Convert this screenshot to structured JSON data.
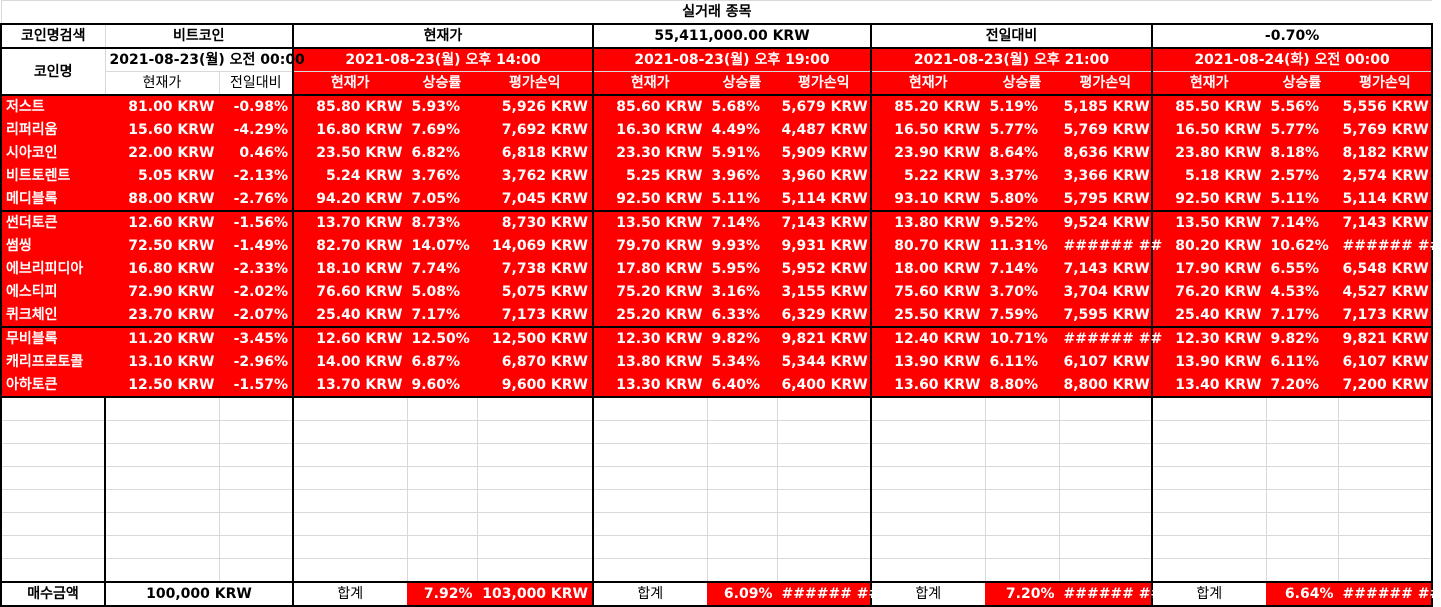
{
  "sheet": {
    "title": "실거래 종목",
    "search_label": "코인명검색",
    "search_value": "비트코인",
    "price_label": "현재가",
    "price_value": "55,411,000.00 KRW",
    "change_label": "전일대비",
    "change_value": "-0.70%",
    "coin_name_label": "코인명",
    "base_date": "2021-08-23(월) 오전 00:00",
    "base_cols": [
      "현재가",
      "전일대비"
    ],
    "sub_cols": [
      "현재가",
      "상승률",
      "평가손익"
    ],
    "snapshots": [
      "2021-08-23(월) 오후 14:00",
      "2021-08-23(월) 오후 19:00",
      "2021-08-23(월) 오후 21:00",
      "2021-08-24(화) 오전 00:00"
    ],
    "coins": [
      {
        "name": "저스트",
        "price": "81.00 KRW",
        "change": "-0.98%",
        "snaps": [
          [
            "85.80 KRW",
            "5.93%",
            "5,926 KRW"
          ],
          [
            "85.60 KRW",
            "5.68%",
            "5,679 KRW"
          ],
          [
            "85.20 KRW",
            "5.19%",
            "5,185 KRW"
          ],
          [
            "85.50 KRW",
            "5.56%",
            "5,556 KRW"
          ]
        ]
      },
      {
        "name": "리퍼리움",
        "price": "15.60 KRW",
        "change": "-4.29%",
        "snaps": [
          [
            "16.80 KRW",
            "7.69%",
            "7,692 KRW"
          ],
          [
            "16.30 KRW",
            "4.49%",
            "4,487 KRW"
          ],
          [
            "16.50 KRW",
            "5.77%",
            "5,769 KRW"
          ],
          [
            "16.50 KRW",
            "5.77%",
            "5,769 KRW"
          ]
        ]
      },
      {
        "name": "시아코인",
        "price": "22.00 KRW",
        "change": "0.46%",
        "snaps": [
          [
            "23.50 KRW",
            "6.82%",
            "6,818 KRW"
          ],
          [
            "23.30 KRW",
            "5.91%",
            "5,909 KRW"
          ],
          [
            "23.90 KRW",
            "8.64%",
            "8,636 KRW"
          ],
          [
            "23.80 KRW",
            "8.18%",
            "8,182 KRW"
          ]
        ]
      },
      {
        "name": "비트토렌트",
        "price": "5.05 KRW",
        "change": "-2.13%",
        "snaps": [
          [
            "5.24 KRW",
            "3.76%",
            "3,762 KRW"
          ],
          [
            "5.25 KRW",
            "3.96%",
            "3,960 KRW"
          ],
          [
            "5.22 KRW",
            "3.37%",
            "3,366 KRW"
          ],
          [
            "5.18 KRW",
            "2.57%",
            "2,574 KRW"
          ]
        ]
      },
      {
        "name": "메디블록",
        "price": "88.00 KRW",
        "change": "-2.76%",
        "snaps": [
          [
            "94.20 KRW",
            "7.05%",
            "7,045 KRW"
          ],
          [
            "92.50 KRW",
            "5.11%",
            "5,114 KRW"
          ],
          [
            "93.10 KRW",
            "5.80%",
            "5,795 KRW"
          ],
          [
            "92.50 KRW",
            "5.11%",
            "5,114 KRW"
          ]
        ]
      },
      {
        "name": "썬더토큰",
        "price": "12.60 KRW",
        "change": "-1.56%",
        "snaps": [
          [
            "13.70 KRW",
            "8.73%",
            "8,730 KRW"
          ],
          [
            "13.50 KRW",
            "7.14%",
            "7,143 KRW"
          ],
          [
            "13.80 KRW",
            "9.52%",
            "9,524 KRW"
          ],
          [
            "13.50 KRW",
            "7.14%",
            "7,143 KRW"
          ]
        ]
      },
      {
        "name": "썸씽",
        "price": "72.50 KRW",
        "change": "-1.49%",
        "snaps": [
          [
            "82.70 KRW",
            "14.07%",
            "14,069 KRW"
          ],
          [
            "79.70 KRW",
            "9.93%",
            "9,931 KRW"
          ],
          [
            "80.70 KRW",
            "11.31%",
            "###### ##"
          ],
          [
            "80.20 KRW",
            "10.62%",
            "###### ##"
          ]
        ]
      },
      {
        "name": "에브리피디아",
        "price": "16.80 KRW",
        "change": "-2.33%",
        "snaps": [
          [
            "18.10 KRW",
            "7.74%",
            "7,738 KRW"
          ],
          [
            "17.80 KRW",
            "5.95%",
            "5,952 KRW"
          ],
          [
            "18.00 KRW",
            "7.14%",
            "7,143 KRW"
          ],
          [
            "17.90 KRW",
            "6.55%",
            "6,548 KRW"
          ]
        ]
      },
      {
        "name": "에스티피",
        "price": "72.90 KRW",
        "change": "-2.02%",
        "snaps": [
          [
            "76.60 KRW",
            "5.08%",
            "5,075 KRW"
          ],
          [
            "75.20 KRW",
            "3.16%",
            "3,155 KRW"
          ],
          [
            "75.60 KRW",
            "3.70%",
            "3,704 KRW"
          ],
          [
            "76.20 KRW",
            "4.53%",
            "4,527 KRW"
          ]
        ]
      },
      {
        "name": "퀴크체인",
        "price": "23.70 KRW",
        "change": "-2.07%",
        "snaps": [
          [
            "25.40 KRW",
            "7.17%",
            "7,173 KRW"
          ],
          [
            "25.20 KRW",
            "6.33%",
            "6,329 KRW"
          ],
          [
            "25.50 KRW",
            "7.59%",
            "7,595 KRW"
          ],
          [
            "25.40 KRW",
            "7.17%",
            "7,173 KRW"
          ]
        ]
      },
      {
        "name": "무비블록",
        "price": "11.20 KRW",
        "change": "-3.45%",
        "snaps": [
          [
            "12.60 KRW",
            "12.50%",
            "12,500 KRW"
          ],
          [
            "12.30 KRW",
            "9.82%",
            "9,821 KRW"
          ],
          [
            "12.40 KRW",
            "10.71%",
            "###### ##"
          ],
          [
            "12.30 KRW",
            "9.82%",
            "9,821 KRW"
          ]
        ]
      },
      {
        "name": "캐리프로토콜",
        "price": "13.10 KRW",
        "change": "-2.96%",
        "snaps": [
          [
            "14.00 KRW",
            "6.87%",
            "6,870 KRW"
          ],
          [
            "13.80 KRW",
            "5.34%",
            "5,344 KRW"
          ],
          [
            "13.90 KRW",
            "6.11%",
            "6,107 KRW"
          ],
          [
            "13.90 KRW",
            "6.11%",
            "6,107 KRW"
          ]
        ]
      },
      {
        "name": "아하토큰",
        "price": "12.50 KRW",
        "change": "-1.57%",
        "snaps": [
          [
            "13.70 KRW",
            "9.60%",
            "9,600 KRW"
          ],
          [
            "13.30 KRW",
            "6.40%",
            "6,400 KRW"
          ],
          [
            "13.60 KRW",
            "8.80%",
            "8,800 KRW"
          ],
          [
            "13.40 KRW",
            "7.20%",
            "7,200 KRW"
          ]
        ]
      }
    ],
    "footer": {
      "purchase_label": "매수금액",
      "purchase_value": "100,000 KRW",
      "sum_label": "합계",
      "totals": [
        [
          "7.92%",
          "103,000 KRW"
        ],
        [
          "6.09%",
          "###### ##"
        ],
        [
          "7.20%",
          "###### ##"
        ],
        [
          "6.64%",
          "###### ##"
        ]
      ]
    }
  }
}
